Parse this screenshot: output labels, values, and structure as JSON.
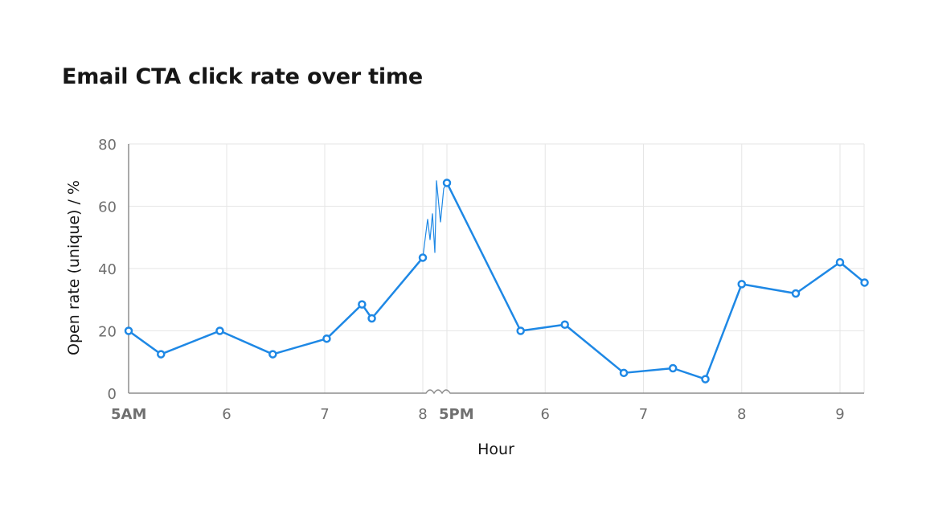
{
  "title": "Email CTA click rate over time",
  "chart_data": {
    "type": "line",
    "title": "Email CTA click rate over time",
    "xlabel": "Hour",
    "ylabel": "Open rate (unique) / %",
    "ylim": [
      0,
      80
    ],
    "y_ticks": [
      "0",
      "20",
      "40",
      "60",
      "80"
    ],
    "x_ticks": [
      {
        "label": "5AM",
        "bold": true,
        "x": 5.0
      },
      {
        "label": "6",
        "bold": false,
        "x": 6.0
      },
      {
        "label": "7",
        "bold": false,
        "x": 7.0
      },
      {
        "label": "8",
        "bold": false,
        "x": 8.0
      },
      {
        "label": "5PM",
        "bold": true,
        "x": 17.0
      },
      {
        "label": "6",
        "bold": false,
        "x": 18.0
      },
      {
        "label": "7",
        "bold": false,
        "x": 19.0
      },
      {
        "label": "8",
        "bold": false,
        "x": 20.0
      },
      {
        "label": "9",
        "bold": false,
        "x": 21.0
      }
    ],
    "axis_break": {
      "from": 8.0,
      "to": 17.0
    },
    "grid": true,
    "color": "#1e88e5",
    "series": [
      {
        "points": [
          {
            "x": 5.0,
            "y": 20
          },
          {
            "x": 5.33,
            "y": 12.5
          },
          {
            "x": 5.93,
            "y": 20
          },
          {
            "x": 6.47,
            "y": 12.5
          },
          {
            "x": 7.02,
            "y": 17.5
          },
          {
            "x": 7.38,
            "y": 28.5
          },
          {
            "x": 7.48,
            "y": 24
          },
          {
            "x": 8.0,
            "y": 43.5
          },
          {
            "x": 17.0,
            "y": 67.5
          },
          {
            "x": 17.75,
            "y": 20
          },
          {
            "x": 18.2,
            "y": 22
          },
          {
            "x": 18.8,
            "y": 6.5
          },
          {
            "x": 19.3,
            "y": 8
          },
          {
            "x": 19.63,
            "y": 4.5
          },
          {
            "x": 20.0,
            "y": 35
          },
          {
            "x": 20.55,
            "y": 32
          },
          {
            "x": 21.0,
            "y": 42
          },
          {
            "x": 21.25,
            "y": 35.5
          }
        ]
      }
    ]
  }
}
